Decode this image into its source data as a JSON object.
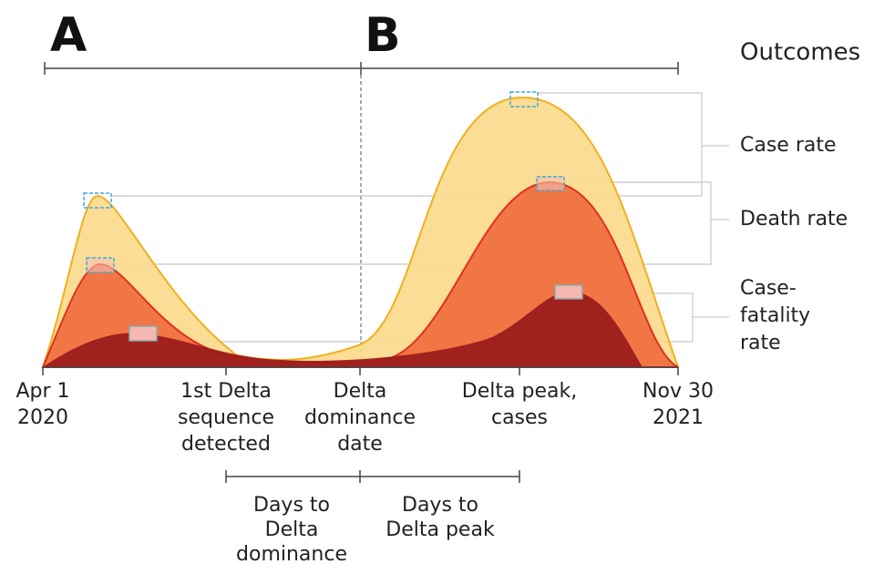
{
  "panels": [
    "A",
    "B"
  ],
  "outcomes": {
    "title": "Outcomes",
    "labels": [
      [
        "Case rate"
      ],
      [
        "Death rate"
      ],
      [
        "Case-",
        "fatality",
        "rate"
      ]
    ]
  },
  "timeline": [
    [
      "Apr 1",
      "2020"
    ],
    [
      "1st Delta",
      "sequence",
      "detected"
    ],
    [
      "Delta",
      "dominance",
      "date"
    ],
    [
      "Delta peak,",
      "cases"
    ],
    [
      "Nov 30",
      "2021"
    ]
  ],
  "intervals": [
    [
      "Days to",
      "Delta",
      "dominance"
    ],
    [
      "Days to",
      "Delta peak"
    ]
  ]
}
